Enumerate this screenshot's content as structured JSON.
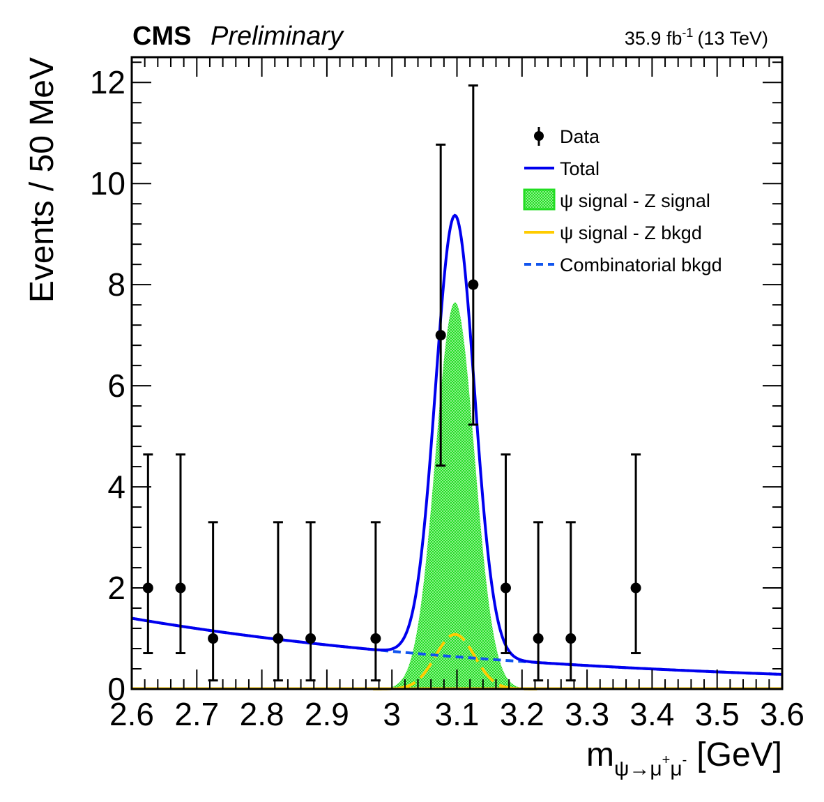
{
  "header": {
    "experiment": "CMS",
    "status": "Preliminary",
    "lumi_value": "35.9 fb",
    "lumi_exp": "-1",
    "energy": "(13 TeV)"
  },
  "chart_data": {
    "type": "scatter",
    "title": "",
    "xlabel_main": "m",
    "xlabel_sub_pre": "ψ→μ",
    "xlabel_sup1": "+",
    "xlabel_mid": "μ",
    "xlabel_sup2": "-",
    "xlabel_unit": "[GeV]",
    "ylabel": "Events / 50 MeV",
    "xlim": [
      2.6,
      3.6
    ],
    "ylim": [
      0,
      12.5
    ],
    "xticks": [
      "2.6",
      "2.7",
      "2.8",
      "2.9",
      "3",
      "3.1",
      "3.2",
      "3.3",
      "3.4",
      "3.5",
      "3.6"
    ],
    "yticks": [
      "0",
      "2",
      "4",
      "6",
      "8",
      "10",
      "12"
    ],
    "legend": {
      "position": "top-right",
      "entries": [
        {
          "label": "Data",
          "style": "marker",
          "color": "#000000"
        },
        {
          "label": "Total",
          "style": "line",
          "color": "#0000ee"
        },
        {
          "label": "ψ signal - Z signal",
          "style": "fill",
          "color": "#33dd33"
        },
        {
          "label": "ψ signal - Z bkgd",
          "style": "line",
          "color": "#ffcc00"
        },
        {
          "label": "Combinatorial bkgd",
          "style": "dashed",
          "color": "#1155ee"
        }
      ]
    },
    "data_points": [
      {
        "x": 2.625,
        "y": 2,
        "err_low": 1.29,
        "err_high": 2.64
      },
      {
        "x": 2.675,
        "y": 2,
        "err_low": 1.29,
        "err_high": 2.64
      },
      {
        "x": 2.725,
        "y": 1,
        "err_low": 0.83,
        "err_high": 2.3
      },
      {
        "x": 2.825,
        "y": 1,
        "err_low": 0.83,
        "err_high": 2.3
      },
      {
        "x": 2.875,
        "y": 1,
        "err_low": 0.83,
        "err_high": 2.3
      },
      {
        "x": 2.975,
        "y": 1,
        "err_low": 0.83,
        "err_high": 2.3
      },
      {
        "x": 3.075,
        "y": 7,
        "err_low": 2.58,
        "err_high": 3.77
      },
      {
        "x": 3.125,
        "y": 8,
        "err_low": 2.77,
        "err_high": 3.94
      },
      {
        "x": 3.175,
        "y": 2,
        "err_low": 1.29,
        "err_high": 2.64
      },
      {
        "x": 3.225,
        "y": 1,
        "err_low": 0.83,
        "err_high": 2.3
      },
      {
        "x": 3.275,
        "y": 1,
        "err_low": 0.83,
        "err_high": 2.3
      },
      {
        "x": 3.375,
        "y": 2,
        "err_low": 1.29,
        "err_high": 2.64
      }
    ],
    "model": {
      "combinatorial_bkgd": {
        "form": "exponential",
        "y_at_xmin": 1.4,
        "y_at_xmax": 0.29
      },
      "signal_z_signal": {
        "form": "gaussian",
        "mean": 3.097,
        "sigma": 0.03,
        "peak": 7.65
      },
      "signal_z_bkgd": {
        "form": "gaussian",
        "mean": 3.097,
        "sigma": 0.03,
        "peak": 1.08
      },
      "total": "combinatorial_bkgd + signal_z_signal + signal_z_bkgd"
    },
    "colors": {
      "data": "#000000",
      "total": "#0000ee",
      "signal_fill": "#33dd33",
      "signal_z_bkgd": "#ffcc00",
      "combinatorial": "#1155ee"
    }
  }
}
